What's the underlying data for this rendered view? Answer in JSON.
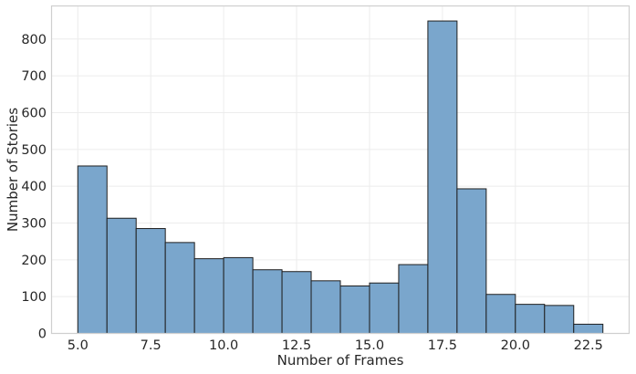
{
  "chart_data": {
    "type": "bar",
    "title": "",
    "xlabel": "Number of Frames",
    "ylabel": "Number of Stories",
    "xlim": [
      4.1,
      23.9
    ],
    "ylim": [
      0,
      890
    ],
    "xticks": [
      5.0,
      7.5,
      10.0,
      12.5,
      15.0,
      17.5,
      20.0,
      22.5
    ],
    "xtick_labels": [
      "5.0",
      "7.5",
      "10.0",
      "12.5",
      "15.0",
      "17.5",
      "20.0",
      "22.5"
    ],
    "yticks": [
      0,
      100,
      200,
      300,
      400,
      500,
      600,
      700,
      800
    ],
    "ytick_labels": [
      "0",
      "100",
      "200",
      "300",
      "400",
      "500",
      "600",
      "700",
      "800"
    ],
    "grid": true,
    "bar_color": "#7aa6cc",
    "edge_color": "#1f1f1f",
    "bins": [
      {
        "x0": 5.0,
        "x1": 6.0,
        "value": 455
      },
      {
        "x0": 6.0,
        "x1": 7.0,
        "value": 313
      },
      {
        "x0": 7.0,
        "x1": 8.0,
        "value": 285
      },
      {
        "x0": 8.0,
        "x1": 9.0,
        "value": 247
      },
      {
        "x0": 9.0,
        "x1": 10.0,
        "value": 203
      },
      {
        "x0": 10.0,
        "x1": 11.0,
        "value": 206
      },
      {
        "x0": 11.0,
        "x1": 12.0,
        "value": 173
      },
      {
        "x0": 12.0,
        "x1": 13.0,
        "value": 168
      },
      {
        "x0": 13.0,
        "x1": 14.0,
        "value": 143
      },
      {
        "x0": 14.0,
        "x1": 15.0,
        "value": 129
      },
      {
        "x0": 15.0,
        "x1": 16.0,
        "value": 137
      },
      {
        "x0": 16.0,
        "x1": 17.0,
        "value": 187
      },
      {
        "x0": 17.0,
        "x1": 18.0,
        "value": 849
      },
      {
        "x0": 18.0,
        "x1": 19.0,
        "value": 393
      },
      {
        "x0": 19.0,
        "x1": 20.0,
        "value": 106
      },
      {
        "x0": 20.0,
        "x1": 21.0,
        "value": 79
      },
      {
        "x0": 21.0,
        "x1": 22.0,
        "value": 76
      },
      {
        "x0": 22.0,
        "x1": 23.0,
        "value": 25
      }
    ]
  }
}
